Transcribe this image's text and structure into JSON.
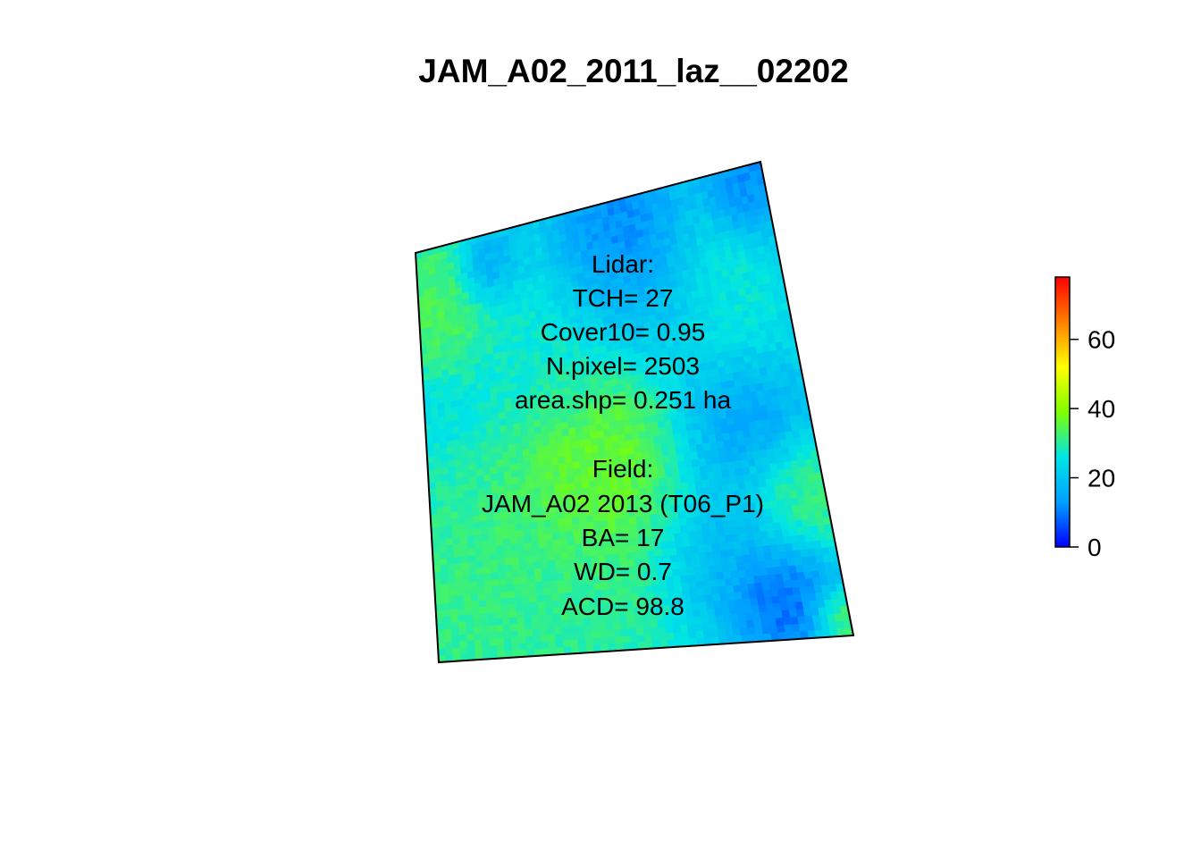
{
  "chart_data": {
    "type": "heatmap",
    "title": "JAM_A02_2011_laz__02202",
    "annotation_lines": [
      "Lidar:",
      "TCH= 27",
      "Cover10= 0.95",
      "N.pixel= 2503",
      "area.shp= 0.251 ha",
      "",
      "Field:",
      "JAM_A02 2013 (T06_P1)",
      "BA= 17",
      "WD= 0.7",
      "ACD= 98.8"
    ],
    "colorbar": {
      "min": 0,
      "max": 78,
      "ticks": [
        0,
        20,
        40,
        60
      ],
      "tick_labels": [
        "0",
        "20",
        "40",
        "60"
      ],
      "palette": [
        "#0000ff",
        "#00a0ff",
        "#00e5e5",
        "#7fff00",
        "#ffff00",
        "#ff8000",
        "#ff0000"
      ]
    },
    "zones": [
      {
        "u": 0.5,
        "v": 0.6,
        "r": 0.16,
        "value": 40
      },
      {
        "u": 0.08,
        "v": 0.14,
        "r": 0.09,
        "value": 36
      },
      {
        "u": 0.14,
        "v": 0.84,
        "r": 0.18,
        "value": 33
      },
      {
        "u": 0.55,
        "v": 0.12,
        "r": 0.1,
        "value": 7
      },
      {
        "u": 0.78,
        "v": 0.53,
        "r": 0.1,
        "value": 9
      },
      {
        "u": 0.86,
        "v": 0.89,
        "r": 0.08,
        "value": 5
      },
      {
        "u": 0.7,
        "v": 0.78,
        "r": 0.1,
        "value": 14
      },
      {
        "u": 0.95,
        "v": 0.02,
        "r": 0.06,
        "value": 10
      },
      {
        "u": 0.2,
        "v": 0.08,
        "r": 0.05,
        "value": 10
      },
      {
        "u": 0.64,
        "v": 0.24,
        "r": 0.09,
        "value": 17
      },
      {
        "u": 0.38,
        "v": 0.26,
        "r": 0.13,
        "value": 27
      },
      {
        "u": 0.8,
        "v": 0.3,
        "r": 0.1,
        "value": 28
      },
      {
        "u": 0.92,
        "v": 0.72,
        "r": 0.08,
        "value": 35
      },
      {
        "u": 0.36,
        "v": 0.9,
        "r": 0.12,
        "value": 30
      },
      {
        "u": 0.98,
        "v": 0.96,
        "r": 0.04,
        "value": 38
      }
    ]
  }
}
